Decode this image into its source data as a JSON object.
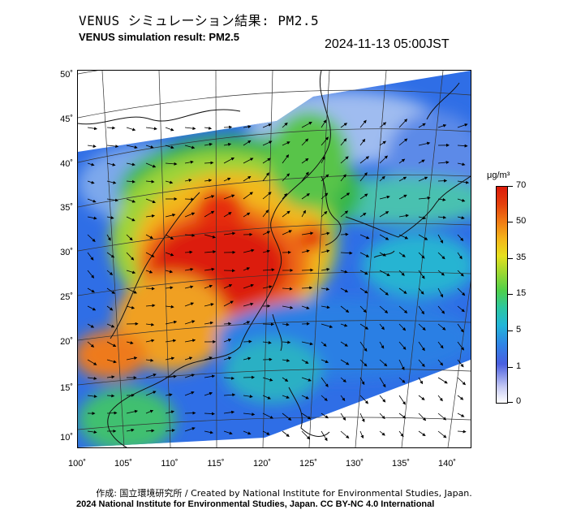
{
  "title_jp": "VENUS シミュレーション結果: PM2.5",
  "title_en": "VENUS simulation result: PM2.5",
  "timestamp": "2024-11-13 05:00JST",
  "lat_labels": [
    "50˚",
    "45˚",
    "40˚",
    "35˚",
    "30˚",
    "25˚",
    "20˚",
    "15˚",
    "10˚"
  ],
  "lon_labels": [
    "100˚",
    "105˚",
    "110˚",
    "115˚",
    "120˚",
    "125˚",
    "130˚",
    "135˚",
    "140˚"
  ],
  "colorbar": {
    "unit": "μg/m³",
    "ticks": [
      "70",
      "50",
      "35",
      "15",
      "5",
      "1",
      "0"
    ]
  },
  "credit": "作成: 国立環境研究所 / Created by National Institute for Environmental Studies, Japan.",
  "license": "2024 National Institute for Environmental Studies, Japan. CC BY-NC 4.0 International"
}
